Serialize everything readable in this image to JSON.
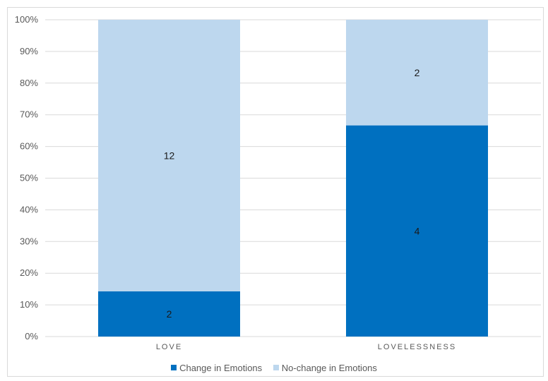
{
  "chart_data": {
    "type": "bar",
    "stacked": true,
    "percent_stacked": true,
    "title": "",
    "xlabel": "",
    "ylabel": "",
    "ylim": [
      0,
      100
    ],
    "yticks": [
      "0%",
      "10%",
      "20%",
      "30%",
      "40%",
      "50%",
      "60%",
      "70%",
      "80%",
      "90%",
      "100%"
    ],
    "categories": [
      "LOVE",
      "LOVELESSNESS"
    ],
    "series": [
      {
        "name": "Change in Emotions",
        "values": [
          2,
          4
        ],
        "color": "#0070c0"
      },
      {
        "name": "No-change in Emotions",
        "values": [
          12,
          2
        ],
        "color": "#bdd7ee"
      }
    ],
    "grid": true,
    "legend_position": "bottom"
  }
}
